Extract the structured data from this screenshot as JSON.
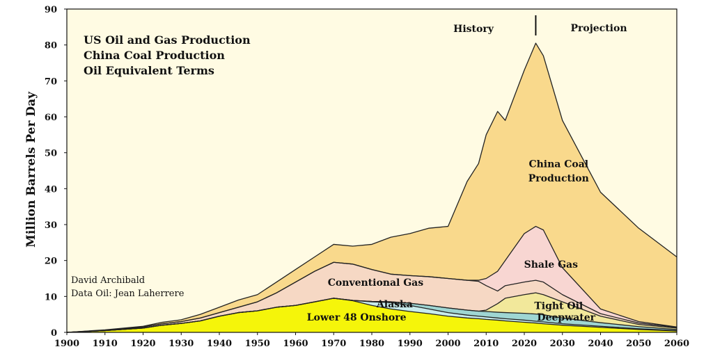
{
  "chart_data": {
    "type": "area",
    "title_lines": [
      "US  Oil and Gas Production",
      "China Coal Production",
      "Oil Equivalent Terms"
    ],
    "ylabel": "Million Barrels Per Day",
    "xlim": [
      1900,
      2060
    ],
    "ylim": [
      0,
      90
    ],
    "x_ticks": [
      1900,
      1910,
      1920,
      1930,
      1940,
      1950,
      1960,
      1970,
      1980,
      1990,
      2000,
      2010,
      2020,
      2030,
      2040,
      2050,
      2060
    ],
    "y_ticks": [
      0,
      10,
      20,
      30,
      40,
      50,
      60,
      70,
      80,
      90
    ],
    "grid": false,
    "history_label": "History",
    "projection_label": "Projection",
    "history_projection_divider_x": 2023,
    "credits": [
      "David Archibald",
      "Data Oil: Jean Laherrere"
    ],
    "colors": {
      "background": "#fffbe3",
      "lower48": "#f5f50a",
      "alaska": "#c8ecec",
      "deepwater": "#9fd6d3",
      "tight_oil": "#f2e89b",
      "conventional_gas": "#f6d8c4",
      "shale_gas": "#f8d6d2",
      "china_coal": "#f9d98c",
      "outline": "#222222"
    },
    "x": [
      1900,
      1910,
      1920,
      1925,
      1930,
      1935,
      1940,
      1945,
      1950,
      1955,
      1960,
      1965,
      1970,
      1975,
      1980,
      1985,
      1990,
      1995,
      2000,
      2005,
      2008,
      2010,
      2013,
      2015,
      2020,
      2023,
      2025,
      2030,
      2040,
      2050,
      2060
    ],
    "series": [
      {
        "name": "Lower 48 Onshore",
        "cumulative": [
          0,
          0.5,
          1.2,
          2,
          2.5,
          3.2,
          4.5,
          5.5,
          6,
          7,
          7.5,
          8.5,
          9.5,
          8.8,
          7.5,
          6.5,
          5.8,
          5.2,
          4.5,
          4,
          3.8,
          3.6,
          3.4,
          3.2,
          2.8,
          2.6,
          2.4,
          2,
          1.4,
          0.8,
          0.4
        ]
      },
      {
        "name": "Alaska",
        "cumulative": [
          0,
          0.5,
          1.2,
          2,
          2.5,
          3.2,
          4.5,
          5.5,
          6,
          7,
          7.5,
          8.5,
          9.5,
          8.9,
          8.5,
          8.3,
          7.5,
          6.5,
          5.5,
          4.8,
          4.5,
          4.3,
          4,
          3.8,
          3.4,
          3.1,
          2.9,
          2.4,
          1.7,
          1,
          0.5
        ]
      },
      {
        "name": "Deepwater",
        "cumulative": [
          0,
          0.5,
          1.2,
          2,
          2.5,
          3.2,
          4.5,
          5.5,
          6,
          7,
          7.5,
          8.5,
          9.5,
          8.9,
          8.6,
          8.5,
          8.1,
          7.5,
          6.8,
          6.2,
          5.9,
          5.8,
          5.6,
          5.5,
          5.3,
          5.1,
          4.9,
          4,
          2.7,
          1.6,
          0.8
        ]
      },
      {
        "name": "Tight Oil",
        "cumulative": [
          0,
          0.5,
          1.2,
          2,
          2.5,
          3.2,
          4.5,
          5.5,
          6,
          7,
          7.5,
          8.5,
          9.5,
          8.9,
          8.6,
          8.5,
          8.1,
          7.5,
          6.8,
          6.2,
          5.9,
          6.2,
          8,
          9.5,
          10.5,
          11,
          10.5,
          8.5,
          4.5,
          2.2,
          1.2
        ]
      },
      {
        "name": "Conventional Gas",
        "cumulative": [
          0,
          0.6,
          1.5,
          2.4,
          3,
          4,
          5.5,
          7,
          8.5,
          11,
          14,
          17,
          19.5,
          19,
          17.5,
          16.2,
          15.8,
          15.5,
          15,
          14.5,
          14.2,
          13,
          11.5,
          13,
          14,
          14.5,
          14,
          10.5,
          5.2,
          2.6,
          1.4
        ]
      },
      {
        "name": "Shale Gas",
        "cumulative": [
          0,
          0.6,
          1.5,
          2.4,
          3,
          4,
          5.5,
          7,
          8.5,
          11,
          14,
          17,
          19.5,
          19,
          17.5,
          16.2,
          15.8,
          15.5,
          15,
          14.5,
          14.5,
          15,
          17,
          20,
          27.5,
          29.5,
          28.5,
          18,
          6.5,
          3,
          1.5
        ]
      },
      {
        "name": "China Coal Production",
        "cumulative": [
          0,
          0.7,
          1.7,
          2.8,
          3.5,
          5,
          7,
          9,
          10.5,
          14,
          17.5,
          21,
          24.5,
          24,
          24.5,
          26.5,
          27.5,
          29,
          29.5,
          42,
          47,
          55,
          61.5,
          59,
          73,
          80.5,
          77,
          59,
          39,
          29,
          21
        ]
      }
    ],
    "area_labels": [
      {
        "text": "Lower 48 Onshore",
        "x": 1976,
        "y": 3.3
      },
      {
        "text": "Alaska",
        "x": 1986,
        "y": 7
      },
      {
        "text": "Deepwater",
        "x": 2031,
        "y": 3.3
      },
      {
        "text": "Tight Oil",
        "x": 2029,
        "y": 6.5
      },
      {
        "text": "Conventional Gas",
        "x": 1981,
        "y": 13
      },
      {
        "text": "Shale Gas",
        "x": 2027,
        "y": 18
      },
      {
        "text": "China Coal",
        "x": 2029,
        "y": 46
      },
      {
        "text": "Production",
        "x": 2029,
        "y": 42
      }
    ]
  }
}
